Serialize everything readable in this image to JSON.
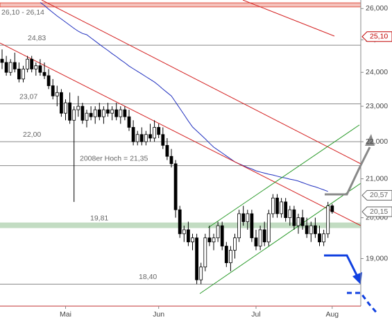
{
  "chart_data": {
    "type": "candlestick",
    "log_scale": true,
    "ylim": [
      17.9,
      26.28
    ],
    "yticks": [
      {
        "value": 19,
        "label": "19,000"
      },
      {
        "value": 20,
        "label": "20,000"
      },
      {
        "value": 21,
        "label": "21,000"
      },
      {
        "value": 22,
        "label": "22,000"
      },
      {
        "value": 23,
        "label": "23,000"
      },
      {
        "value": 24,
        "label": "24,000"
      },
      {
        "value": 25,
        "label": "25,000"
      },
      {
        "value": 26,
        "label": "26,000"
      }
    ],
    "up_color": "#ffffff",
    "down_color": "#000000",
    "categories": [
      null,
      null,
      null,
      null,
      null,
      null,
      null,
      null,
      null,
      null,
      null,
      null,
      null,
      null,
      null,
      "Mai",
      null,
      null,
      null,
      null,
      null,
      null,
      null,
      null,
      null,
      null,
      null,
      null,
      null,
      null,
      null,
      null,
      null,
      null,
      null,
      null,
      null,
      "Jun",
      null,
      null,
      null,
      null,
      null,
      null,
      null,
      null,
      null,
      null,
      null,
      null,
      null,
      null,
      null,
      null,
      null,
      null,
      null,
      null,
      null,
      null,
      "Jul",
      null,
      null,
      null,
      null,
      null,
      null,
      null,
      null,
      null,
      null,
      null,
      null,
      null,
      null,
      null,
      null,
      null,
      "Aug"
    ],
    "open": [
      24.4,
      24.3,
      24.0,
      24.3,
      24.1,
      23.8,
      24.1,
      24.4,
      24.1,
      24.2,
      24.0,
      23.9,
      23.6,
      23.3,
      23.4,
      22.8,
      23.1,
      22.6,
      22.9,
      23.0,
      22.6,
      22.8,
      22.7,
      22.9,
      22.7,
      22.9,
      22.8,
      22.9,
      22.7,
      22.9,
      22.7,
      22.4,
      22.0,
      22.2,
      22.0,
      22.2,
      22.1,
      22.4,
      22.2,
      21.9,
      21.6,
      21.4,
      20.2,
      19.6,
      19.7,
      19.4,
      19.5,
      18.5,
      18.8,
      19.5,
      19.4,
      19.5,
      19.8,
      19.3,
      18.9,
      19.2,
      19.5,
      20.1,
      19.9,
      20.1,
      19.5,
      19.3,
      19.7,
      19.4,
      20.1,
      20.5,
      20.1,
      20.4,
      20.0,
      20.2,
      19.8,
      20.0,
      19.8,
      19.6,
      19.8,
      19.6,
      19.4,
      19.6,
      20.3
    ],
    "high": [
      24.7,
      24.5,
      24.4,
      24.6,
      24.3,
      24.2,
      24.5,
      24.5,
      24.3,
      24.4,
      24.3,
      24.1,
      23.8,
      23.6,
      23.5,
      23.2,
      23.4,
      23.0,
      23.3,
      23.1,
      22.9,
      23.0,
      23.0,
      23.1,
      23.0,
      23.1,
      23.0,
      23.1,
      23.0,
      23.0,
      22.9,
      22.6,
      22.3,
      22.4,
      22.3,
      22.5,
      22.6,
      22.5,
      22.4,
      22.1,
      21.8,
      21.5,
      20.3,
      19.8,
      19.9,
      19.6,
      19.6,
      18.9,
      19.6,
      19.8,
      19.6,
      19.9,
      19.9,
      19.4,
      19.3,
      19.6,
      20.2,
      20.3,
      20.2,
      20.2,
      19.7,
      19.8,
      19.9,
      20.2,
      20.6,
      20.6,
      20.5,
      20.5,
      20.3,
      20.3,
      20.1,
      20.2,
      20.0,
      19.9,
      20.0,
      19.8,
      19.7,
      20.4,
      20.35
    ],
    "low": [
      24.1,
      23.9,
      23.9,
      24.0,
      23.7,
      23.7,
      24.0,
      24.0,
      23.9,
      23.9,
      23.8,
      23.5,
      23.2,
      23.0,
      22.7,
      22.6,
      22.5,
      20.4,
      22.7,
      22.5,
      22.4,
      22.6,
      22.5,
      22.6,
      22.5,
      22.7,
      22.6,
      22.6,
      22.5,
      22.6,
      22.3,
      21.9,
      21.9,
      21.9,
      21.9,
      22.0,
      22.0,
      22.1,
      21.8,
      21.5,
      21.3,
      20.0,
      19.5,
      19.4,
      19.3,
      19.2,
      18.4,
      18.4,
      18.7,
      19.3,
      19.2,
      19.4,
      19.2,
      18.8,
      18.7,
      19.0,
      19.4,
      19.8,
      19.7,
      19.4,
      19.2,
      19.2,
      19.3,
      19.3,
      20.0,
      20.0,
      20.0,
      19.9,
      19.8,
      19.7,
      19.6,
      19.7,
      19.5,
      19.4,
      19.5,
      19.3,
      19.3,
      19.5,
      20.1
    ],
    "close": [
      24.3,
      24.0,
      24.3,
      24.1,
      23.8,
      24.1,
      24.4,
      24.1,
      24.2,
      24.0,
      23.9,
      23.6,
      23.3,
      23.4,
      22.8,
      23.1,
      22.6,
      22.9,
      23.0,
      22.6,
      22.8,
      22.7,
      22.9,
      22.7,
      22.9,
      22.8,
      22.9,
      22.7,
      22.9,
      22.7,
      22.4,
      22.0,
      22.2,
      22.0,
      22.2,
      22.1,
      22.4,
      22.2,
      21.9,
      21.6,
      21.4,
      20.2,
      19.6,
      19.7,
      19.4,
      19.5,
      18.5,
      18.8,
      19.5,
      19.4,
      19.5,
      19.8,
      19.3,
      18.9,
      19.2,
      19.5,
      20.1,
      19.9,
      20.1,
      19.5,
      19.3,
      19.7,
      19.4,
      20.1,
      20.5,
      20.1,
      20.4,
      20.0,
      20.2,
      19.8,
      20.0,
      19.8,
      19.6,
      19.8,
      19.6,
      19.4,
      19.6,
      20.3,
      20.15
    ],
    "moving_average": {
      "color": "#1f2fbf",
      "values": [
        null,
        null,
        null,
        null,
        null,
        null,
        null,
        null,
        null,
        26.2,
        26.1,
        25.98,
        25.87,
        25.76,
        25.66,
        25.56,
        25.46,
        25.36,
        25.27,
        25.2,
        25.16,
        25.06,
        24.96,
        24.86,
        24.76,
        24.67,
        24.57,
        24.48,
        24.38,
        24.29,
        24.19,
        24.11,
        24.03,
        23.95,
        23.87,
        23.79,
        23.71,
        23.61,
        23.5,
        23.4,
        23.3,
        23.12,
        22.94,
        22.76,
        22.58,
        22.41,
        22.3,
        22.19,
        22.08,
        21.96,
        21.85,
        21.77,
        21.69,
        21.61,
        21.53,
        21.45,
        21.4,
        21.35,
        21.3,
        21.26,
        21.21,
        21.18,
        21.15,
        21.12,
        21.1,
        21.07,
        21.04,
        21.02,
        20.99,
        20.97,
        20.94,
        20.9,
        20.86,
        20.82,
        20.79,
        20.75,
        20.71,
        20.67,
        null
      ]
    },
    "levels": [
      {
        "values": [
          26.1,
          26.14
        ],
        "label": "26,10 - 26,14",
        "color": "#e05040"
      },
      {
        "values": [
          24.83
        ],
        "label": "24,83",
        "color": "#888888"
      },
      {
        "values": [
          23.07
        ],
        "label": "23,07",
        "color": "#888888"
      },
      {
        "values": [
          22.0
        ],
        "label": "22,00",
        "color": "#888888"
      },
      {
        "values": [
          21.35
        ],
        "label": "2008er Hoch  =  21,35",
        "color": "#888888"
      },
      {
        "values": [
          19.81
        ],
        "label": "19,81",
        "color": "#8fbf8f"
      },
      {
        "values": [
          18.4
        ],
        "label": "18,40",
        "color": "#888888"
      }
    ],
    "price_tags": [
      {
        "value": 25.1,
        "label": "25,10",
        "color": "#c00000"
      },
      {
        "value": 20.57,
        "label": "20,57",
        "color": "#666666"
      },
      {
        "value": 20.15,
        "label": "20,15",
        "color": "#666666"
      }
    ]
  }
}
